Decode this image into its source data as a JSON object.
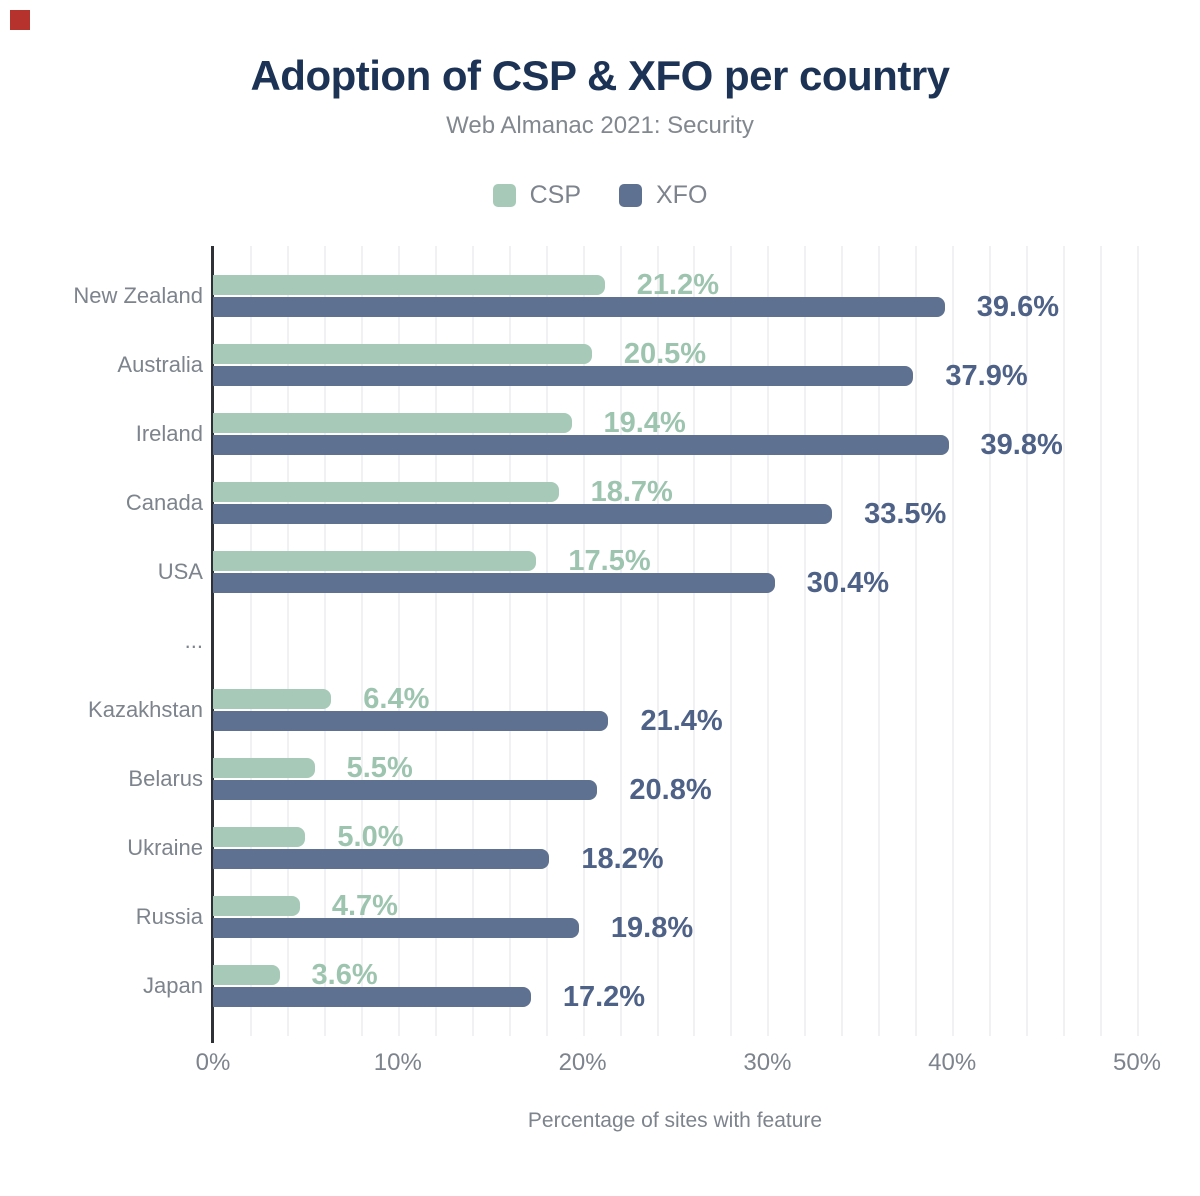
{
  "chart_data": {
    "type": "bar",
    "orientation": "horizontal",
    "title": "Adoption of CSP & XFO per country",
    "subtitle": "Web Almanac 2021: Security",
    "xlabel": "Percentage of sites with feature",
    "x_ticks": [
      "0%",
      "10%",
      "20%",
      "30%",
      "40%",
      "50%"
    ],
    "xlim": [
      0,
      50
    ],
    "gridline_step_pct": 2,
    "grid": true,
    "legend_position": "top",
    "legend": [
      "CSP",
      "XFO"
    ],
    "categories": [
      "New Zealand",
      "Australia",
      "Ireland",
      "Canada",
      "USA",
      "...",
      "Kazakhstan",
      "Belarus",
      "Ukraine",
      "Russia",
      "Japan"
    ],
    "series": [
      {
        "name": "CSP",
        "values": [
          21.2,
          20.5,
          19.4,
          18.7,
          17.5,
          null,
          6.4,
          5.5,
          5.0,
          4.7,
          3.6
        ]
      },
      {
        "name": "XFO",
        "values": [
          39.6,
          37.9,
          39.8,
          33.5,
          30.4,
          null,
          21.4,
          20.8,
          18.2,
          19.8,
          17.2
        ]
      }
    ],
    "value_labels": [
      {
        "country": "New Zealand",
        "CSP": "21.2%",
        "XFO": "39.6%"
      },
      {
        "country": "Australia",
        "CSP": "20.5%",
        "XFO": "37.9%"
      },
      {
        "country": "Ireland",
        "CSP": "19.4%",
        "XFO": "39.8%"
      },
      {
        "country": "Canada",
        "CSP": "18.7%",
        "XFO": "33.5%"
      },
      {
        "country": "USA",
        "CSP": "17.5%",
        "XFO": "30.4%"
      },
      {
        "country": "Kazakhstan",
        "CSP": "6.4%",
        "XFO": "21.4%"
      },
      {
        "country": "Belarus",
        "CSP": "5.5%",
        "XFO": "20.8%"
      },
      {
        "country": "Ukraine",
        "CSP": "5.0%",
        "XFO": "18.2%"
      },
      {
        "country": "Russia",
        "CSP": "4.7%",
        "XFO": "19.8%"
      },
      {
        "country": "Japan",
        "CSP": "3.6%",
        "XFO": "17.2%"
      }
    ]
  },
  "colors": {
    "title": "#1c3355",
    "subtitle": "#82888f",
    "text_gray": "#7d848d",
    "csp_bar": "#a6cab7",
    "csp_label": "#9dc4ae",
    "xfo_bar": "#5e7190",
    "xfo_label": "#4e6187",
    "axis": "#2e3236",
    "gridline": "#f1f1f4",
    "corner_marker": "#b5332c",
    "background": "#ffffff"
  }
}
